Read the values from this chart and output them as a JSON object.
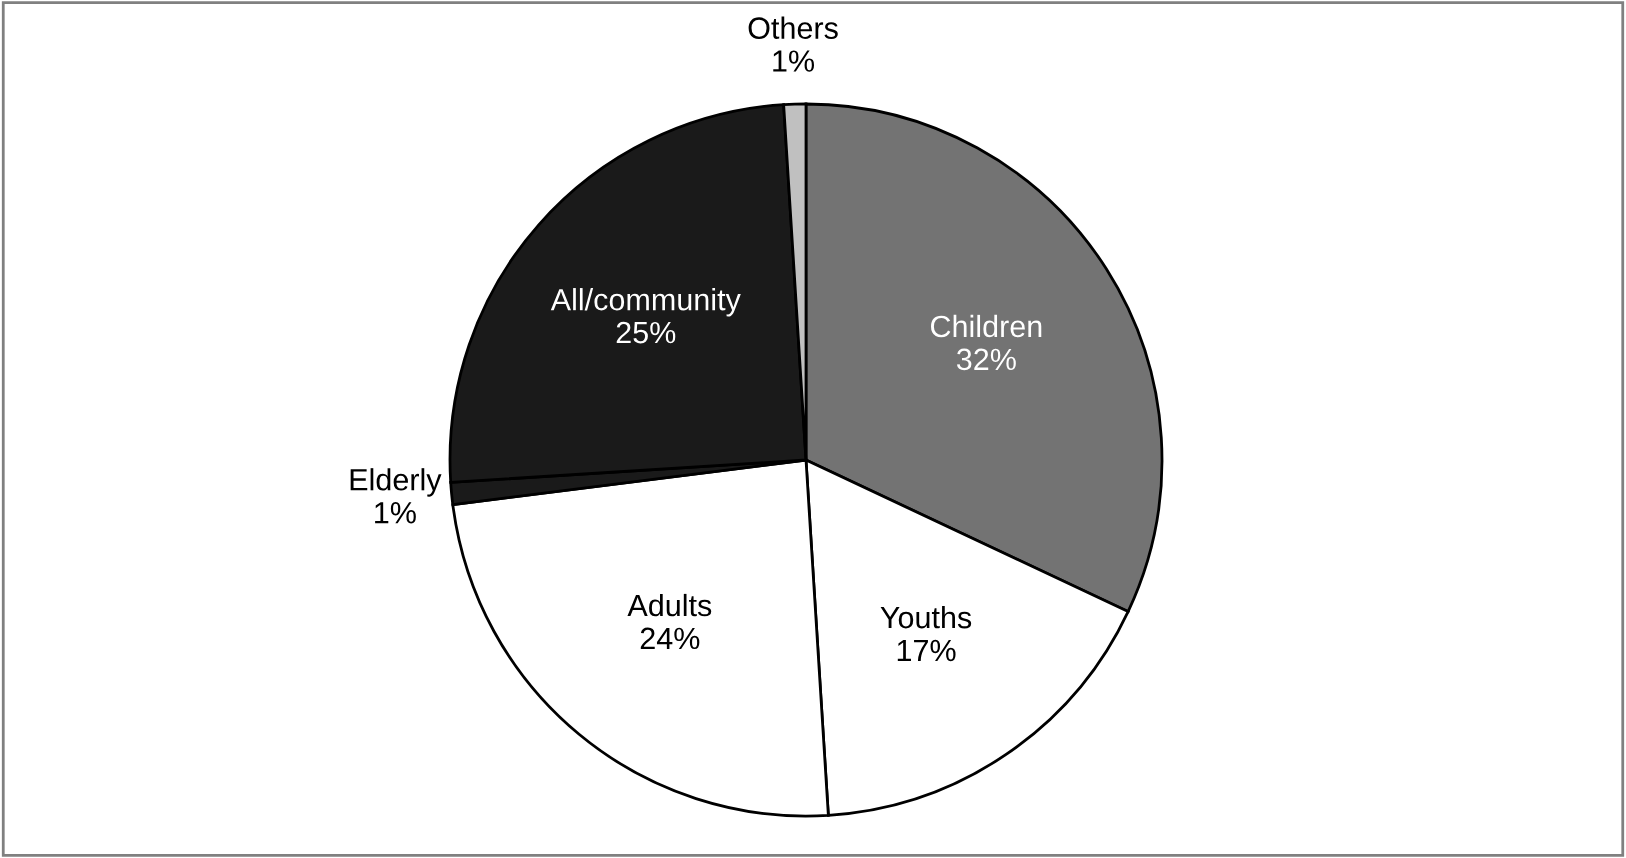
{
  "chart_data": {
    "type": "pie",
    "categories": [
      "Children",
      "Youths",
      "Adults",
      "Elderly",
      "All/community",
      "Others"
    ],
    "values": [
      32,
      17,
      24,
      1,
      25,
      1
    ],
    "value_labels": [
      "32%",
      "17%",
      "24%",
      "1%",
      "25%",
      "1%"
    ],
    "colors": [
      "#737373",
      "#ffffff",
      "#ffffff",
      "#1a1a1a",
      "#1a1a1a",
      "#c0c0c0"
    ],
    "legend": false
  }
}
